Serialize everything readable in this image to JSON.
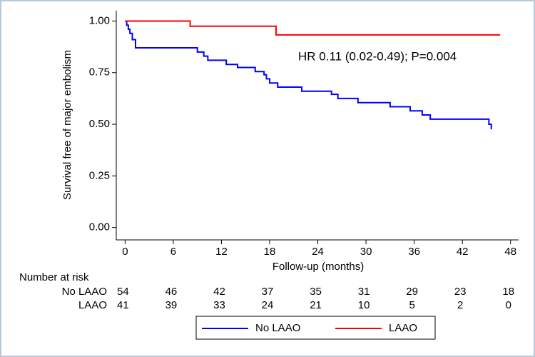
{
  "chart_data": {
    "type": "step",
    "y_label": "Survival free of major embolism",
    "x_label": "Follow-up (months)",
    "annotation": "HR 0.11 (0.02-0.49); P=0.004",
    "xlim": [
      -1.1,
      49
    ],
    "ylim": [
      -0.06,
      1.05
    ],
    "xticks": [
      0,
      6,
      12,
      18,
      24,
      30,
      36,
      42,
      48
    ],
    "yticks": [
      {
        "value": 0,
        "label": "0.00"
      },
      {
        "value": 0.25,
        "label": "0.25"
      },
      {
        "value": 0.5,
        "label": "0.50"
      },
      {
        "value": 0.75,
        "label": "0.75"
      },
      {
        "value": 1,
        "label": "1.00"
      }
    ],
    "series": [
      {
        "name": "No LAAO",
        "color": "#0000ff",
        "x": [
          0,
          0.2,
          0.2,
          0.4,
          0.4,
          0.6,
          0.6,
          0.9,
          0.9,
          1.3,
          1.3,
          9.0,
          9.0,
          9.8,
          9.8,
          10.3,
          10.3,
          12.6,
          12.6,
          14.0,
          14.0,
          16.2,
          16.2,
          17.3,
          17.3,
          17.6,
          17.6,
          18.0,
          18.0,
          19.0,
          19.0,
          22.0,
          22.0,
          25.7,
          25.7,
          26.5,
          26.5,
          29.0,
          29.0,
          33.0,
          33.0,
          35.5,
          35.5,
          37.0,
          37.0,
          38.0,
          38.0,
          45.3,
          45.3,
          45.6,
          45.6
        ],
        "values": [
          1,
          1,
          0.98,
          0.98,
          0.96,
          0.96,
          0.94,
          0.94,
          0.91,
          0.91,
          0.87,
          0.87,
          0.85,
          0.85,
          0.83,
          0.83,
          0.81,
          0.81,
          0.79,
          0.79,
          0.775,
          0.775,
          0.755,
          0.755,
          0.74,
          0.74,
          0.72,
          0.72,
          0.7,
          0.7,
          0.68,
          0.68,
          0.66,
          0.66,
          0.645,
          0.645,
          0.625,
          0.625,
          0.605,
          0.605,
          0.585,
          0.585,
          0.565,
          0.565,
          0.545,
          0.545,
          0.525,
          0.525,
          0.5,
          0.5,
          0.475
        ]
      },
      {
        "name": "LAAO",
        "color": "#ff0000",
        "x": [
          0,
          8.1,
          8.1,
          18.8,
          18.8,
          46.7
        ],
        "values": [
          1,
          1,
          0.975,
          0.975,
          0.933,
          0.933
        ]
      }
    ],
    "risk_table": {
      "title": "Number at risk",
      "rows": [
        {
          "name": "No LAAO",
          "values": [
            54,
            46,
            42,
            37,
            35,
            31,
            29,
            23,
            18
          ]
        },
        {
          "name": "LAAO",
          "values": [
            41,
            39,
            33,
            24,
            21,
            10,
            5,
            2,
            0
          ]
        }
      ]
    }
  }
}
